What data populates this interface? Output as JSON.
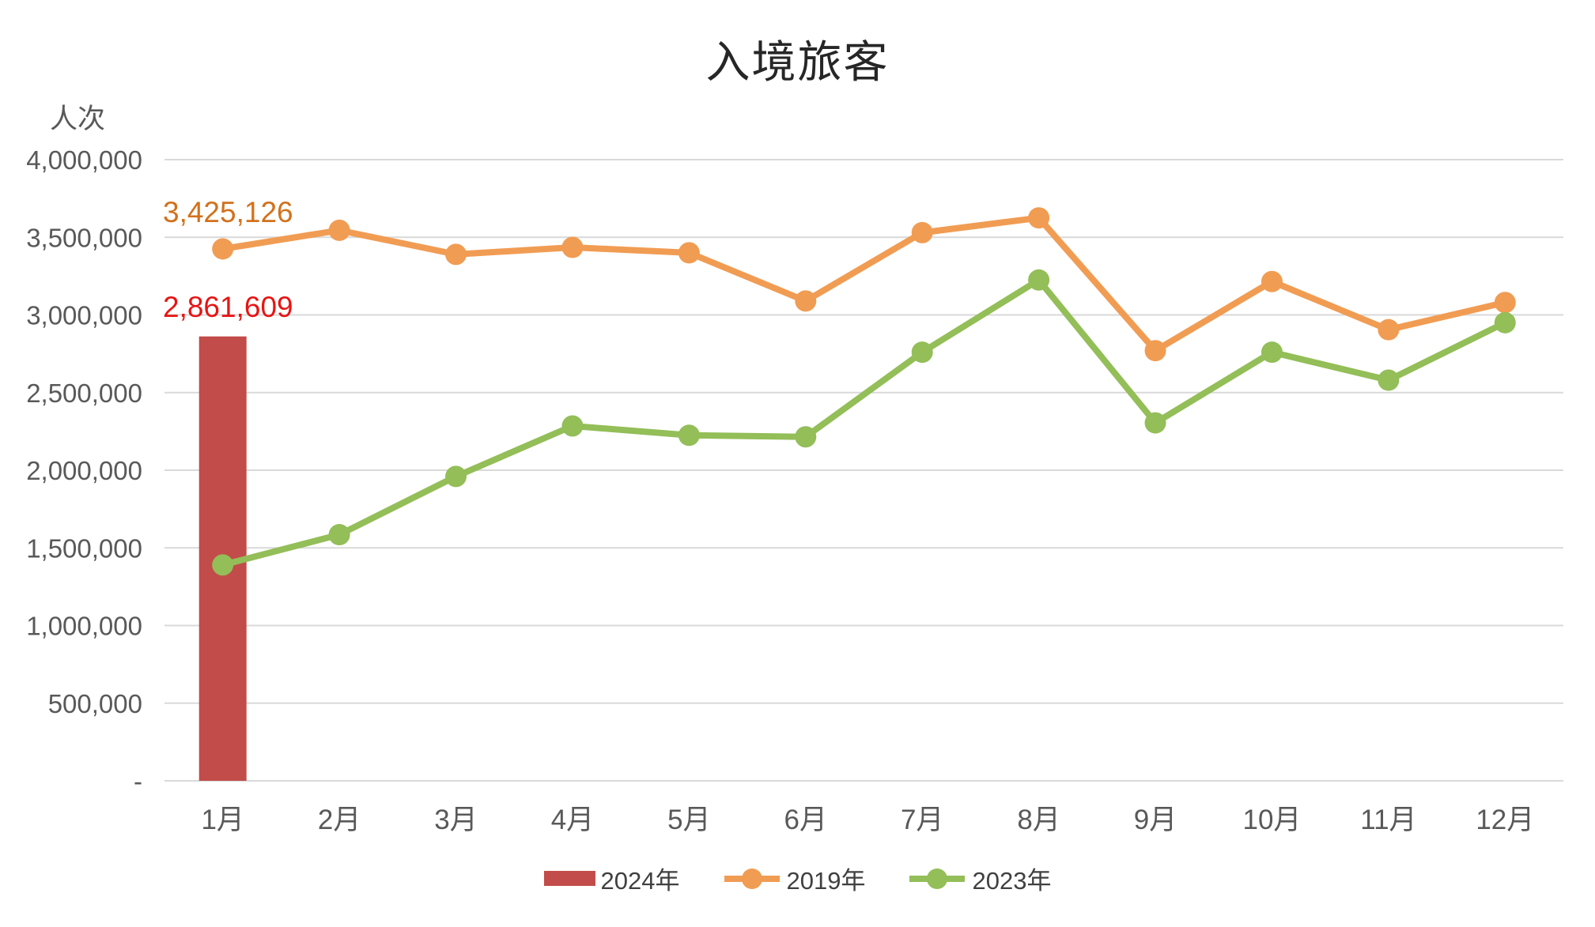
{
  "title": "入境旅客",
  "y_axis": {
    "unit_label": "人次",
    "tick_labels": [
      "4,000,000",
      "3,500,000",
      "3,000,000",
      "2,500,000",
      "2,000,000",
      "1,500,000",
      "1,000,000",
      "500,000",
      "-"
    ]
  },
  "annotations": [
    {
      "text": "3,425,126",
      "series": "2019年",
      "color": "#D2711C"
    },
    {
      "text": "2,861,609",
      "series": "2024年",
      "color": "#E81414"
    }
  ],
  "legend": [
    {
      "label": "2024年",
      "type": "bar",
      "color": "#C24C49"
    },
    {
      "label": "2019年",
      "type": "line",
      "color": "#F19C53"
    },
    {
      "label": "2023年",
      "type": "line",
      "color": "#93BE58"
    }
  ],
  "colors": {
    "grid": "#D9D9D9",
    "axis_text": "#595959",
    "title_text": "#262626",
    "legend_text": "#404040",
    "bar_2024": "#C24C49",
    "line_2019": "#F19C53",
    "line_2023": "#93BE58"
  },
  "chart_data": {
    "type": "bar",
    "note": "combo chart: one bar series + two line series",
    "categories": [
      "1月",
      "2月",
      "3月",
      "4月",
      "5月",
      "6月",
      "7月",
      "8月",
      "9月",
      "10月",
      "11月",
      "12月"
    ],
    "series": [
      {
        "name": "2024年",
        "type": "bar",
        "color": "#C24C49",
        "values": [
          2861609,
          null,
          null,
          null,
          null,
          null,
          null,
          null,
          null,
          null,
          null,
          null
        ]
      },
      {
        "name": "2019年",
        "type": "line",
        "color": "#F19C53",
        "values": [
          3425126,
          3545000,
          3390000,
          3435000,
          3400000,
          3090000,
          3530000,
          3625000,
          2770000,
          3215000,
          2905000,
          3080000
        ]
      },
      {
        "name": "2023年",
        "type": "line",
        "color": "#93BE58",
        "values": [
          1390000,
          1585000,
          1960000,
          2285000,
          2225000,
          2215000,
          2760000,
          3225000,
          2305000,
          2760000,
          2580000,
          2950000
        ]
      }
    ],
    "title": "入境旅客",
    "xlabel": "",
    "ylabel": "人次",
    "ylim": [
      0,
      4000000
    ],
    "ytick_step": 500000,
    "grid": true,
    "legend_position": "bottom"
  }
}
